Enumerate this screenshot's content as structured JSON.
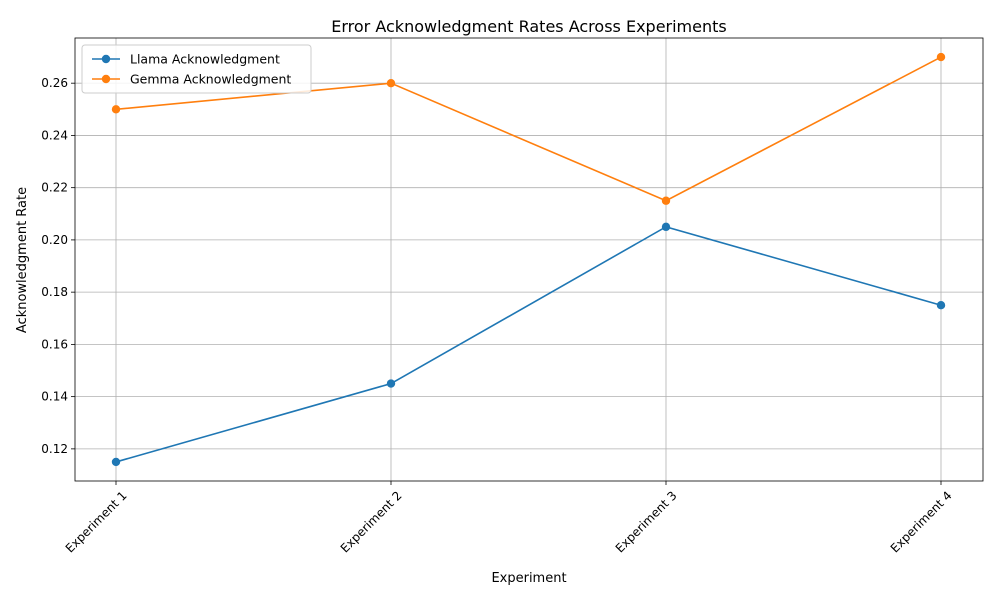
{
  "chart_data": {
    "type": "line",
    "title": "Error Acknowledgment Rates Across Experiments",
    "xlabel": "Experiment",
    "ylabel": "Acknowledgment Rate",
    "categories": [
      "Experiment 1",
      "Experiment 2",
      "Experiment 3",
      "Experiment 4"
    ],
    "series": [
      {
        "name": "Llama Acknowledgment",
        "values": [
          0.115,
          0.145,
          0.205,
          0.175
        ],
        "color": "#1f77b4"
      },
      {
        "name": "Gemma Acknowledgment",
        "values": [
          0.25,
          0.26,
          0.215,
          0.27
        ],
        "color": "#ff7f0e"
      }
    ],
    "ylim": [
      0.1077,
      0.2773
    ],
    "yticks": [
      "0.12",
      "0.14",
      "0.16",
      "0.18",
      "0.20",
      "0.22",
      "0.24",
      "0.26"
    ],
    "grid": true,
    "legend_position": "top-left"
  }
}
